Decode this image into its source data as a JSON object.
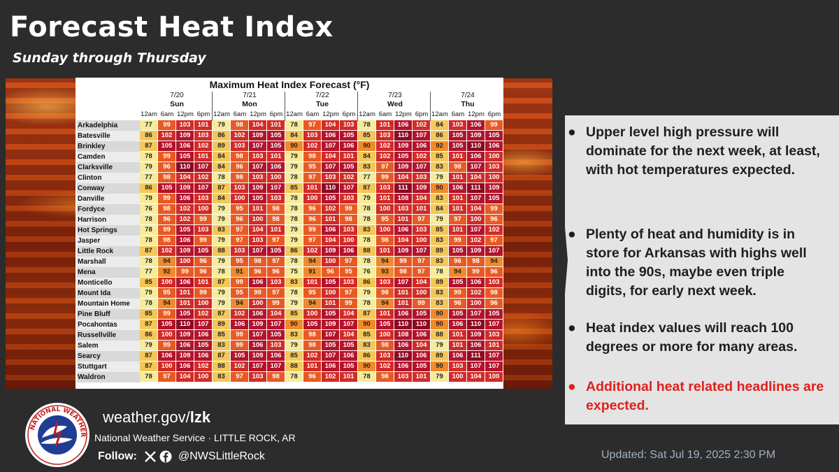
{
  "header": {
    "title": "Forecast Heat Index",
    "subtitle": "Sunday through Thursday"
  },
  "table": {
    "title": "Maximum Heat Index Forecast (°F)",
    "days": [
      {
        "date": "7/20",
        "dow": "Sun"
      },
      {
        "date": "7/21",
        "dow": "Mon"
      },
      {
        "date": "7/22",
        "dow": "Tue"
      },
      {
        "date": "7/23",
        "dow": "Wed"
      },
      {
        "date": "7/24",
        "dow": "Thu"
      }
    ],
    "hours": [
      "12am",
      "6am",
      "12pm",
      "6pm"
    ],
    "rows": [
      {
        "city": "Arkadelphia",
        "values": [
          77,
          99,
          103,
          101,
          79,
          98,
          104,
          101,
          78,
          97,
          104,
          103,
          78,
          101,
          106,
          102,
          84,
          103,
          106,
          99
        ]
      },
      {
        "city": "Batesville",
        "values": [
          86,
          102,
          109,
          103,
          86,
          102,
          109,
          105,
          84,
          103,
          106,
          105,
          85,
          103,
          110,
          107,
          86,
          105,
          109,
          105
        ]
      },
      {
        "city": "Brinkley",
        "values": [
          87,
          105,
          106,
          102,
          89,
          103,
          107,
          105,
          90,
          102,
          107,
          106,
          90,
          102,
          109,
          106,
          92,
          105,
          110,
          106
        ]
      },
      {
        "city": "Camden",
        "values": [
          78,
          99,
          105,
          101,
          84,
          98,
          103,
          101,
          79,
          98,
          104,
          101,
          84,
          102,
          105,
          102,
          85,
          101,
          106,
          100
        ]
      },
      {
        "city": "Clarksville",
        "values": [
          79,
          96,
          110,
          107,
          84,
          96,
          107,
          106,
          79,
          95,
          107,
          105,
          83,
          97,
          109,
          107,
          83,
          98,
          107,
          103
        ]
      },
      {
        "city": "Clinton",
        "values": [
          77,
          98,
          104,
          102,
          78,
          98,
          103,
          100,
          78,
          97,
          103,
          102,
          77,
          99,
          104,
          103,
          79,
          101,
          104,
          100
        ]
      },
      {
        "city": "Conway",
        "values": [
          86,
          105,
          109,
          107,
          87,
          103,
          109,
          107,
          85,
          101,
          110,
          107,
          87,
          103,
          111,
          109,
          90,
          106,
          111,
          109
        ]
      },
      {
        "city": "Danville",
        "values": [
          79,
          99,
          106,
          103,
          84,
          100,
          105,
          103,
          78,
          100,
          105,
          103,
          79,
          101,
          108,
          104,
          83,
          101,
          107,
          105
        ]
      },
      {
        "city": "Fordyce",
        "values": [
          76,
          98,
          102,
          100,
          79,
          95,
          101,
          98,
          78,
          96,
          102,
          99,
          78,
          100,
          103,
          101,
          84,
          101,
          104,
          99
        ]
      },
      {
        "city": "Harrison",
        "values": [
          78,
          96,
          102,
          99,
          79,
          96,
          100,
          98,
          78,
          96,
          101,
          98,
          78,
          95,
          101,
          97,
          79,
          97,
          100,
          96
        ]
      },
      {
        "city": "Hot Springs",
        "values": [
          78,
          99,
          105,
          103,
          83,
          97,
          104,
          101,
          79,
          99,
          106,
          103,
          83,
          100,
          106,
          103,
          85,
          101,
          107,
          102
        ]
      },
      {
        "city": "Jasper",
        "values": [
          78,
          98,
          106,
          99,
          79,
          97,
          103,
          97,
          79,
          97,
          104,
          100,
          78,
          98,
          104,
          100,
          83,
          99,
          102,
          97
        ]
      },
      {
        "city": "Little Rock",
        "values": [
          87,
          102,
          109,
          105,
          88,
          103,
          107,
          105,
          86,
          102,
          109,
          106,
          88,
          101,
          109,
          107,
          89,
          105,
          109,
          107
        ]
      },
      {
        "city": "Marshall",
        "values": [
          78,
          94,
          100,
          96,
          79,
          95,
          98,
          97,
          78,
          94,
          100,
          97,
          78,
          94,
          99,
          97,
          83,
          96,
          98,
          94
        ]
      },
      {
        "city": "Mena",
        "values": [
          77,
          92,
          99,
          96,
          78,
          91,
          96,
          96,
          75,
          91,
          96,
          95,
          76,
          93,
          98,
          97,
          78,
          94,
          99,
          96
        ]
      },
      {
        "city": "Monticello",
        "values": [
          85,
          100,
          106,
          101,
          87,
          99,
          106,
          103,
          83,
          101,
          105,
          103,
          86,
          103,
          107,
          104,
          89,
          105,
          106,
          103
        ]
      },
      {
        "city": "Mount Ida",
        "values": [
          79,
          95,
          101,
          99,
          79,
          95,
          99,
          97,
          78,
          95,
          100,
          97,
          79,
          98,
          101,
          100,
          83,
          99,
          102,
          98
        ]
      },
      {
        "city": "Mountain Home",
        "values": [
          78,
          94,
          101,
          100,
          79,
          94,
          100,
          99,
          79,
          94,
          101,
          99,
          78,
          94,
          101,
          99,
          83,
          96,
          100,
          96
        ]
      },
      {
        "city": "Pine Bluff",
        "values": [
          85,
          99,
          105,
          102,
          87,
          102,
          106,
          104,
          85,
          100,
          105,
          104,
          87,
          101,
          106,
          105,
          90,
          105,
          107,
          105
        ]
      },
      {
        "city": "Pocahontas",
        "values": [
          87,
          105,
          110,
          107,
          89,
          106,
          109,
          107,
          90,
          105,
          109,
          107,
          90,
          105,
          110,
          110,
          90,
          106,
          110,
          107
        ]
      },
      {
        "city": "Russellville",
        "values": [
          86,
          100,
          109,
          106,
          85,
          99,
          107,
          105,
          83,
          98,
          107,
          104,
          85,
          100,
          108,
          106,
          88,
          101,
          109,
          103
        ]
      },
      {
        "city": "Salem",
        "values": [
          79,
          99,
          106,
          105,
          83,
          99,
          106,
          103,
          79,
          98,
          105,
          105,
          83,
          98,
          106,
          104,
          79,
          101,
          106,
          101
        ]
      },
      {
        "city": "Searcy",
        "values": [
          87,
          106,
          109,
          106,
          87,
          105,
          109,
          106,
          85,
          102,
          107,
          106,
          86,
          103,
          110,
          106,
          89,
          106,
          111,
          107
        ]
      },
      {
        "city": "Stuttgart",
        "values": [
          87,
          100,
          106,
          102,
          88,
          102,
          107,
          107,
          88,
          101,
          106,
          105,
          90,
          102,
          106,
          105,
          90,
          103,
          107,
          107
        ]
      },
      {
        "city": "Waldron",
        "values": [
          78,
          97,
          104,
          100,
          83,
          97,
          103,
          98,
          78,
          96,
          102,
          101,
          78,
          98,
          103,
          101,
          79,
          100,
          104,
          100
        ]
      }
    ]
  },
  "bullets": [
    {
      "text": "Upper level high pressure will dominate for the next week, at least, with hot temperatures expected.",
      "color": "#1e1e1e"
    },
    {
      "text": "Plenty of heat and humidity is in store for Arkansas with highs well into the 90s, maybe even triple digits, for early next week.",
      "color": "#1e1e1e"
    },
    {
      "text": "Heat index values will reach 100 degrees or more for many areas.",
      "color": "#1e1e1e"
    },
    {
      "text": "Additional heat related headlines are expected.",
      "color": "#e0201c"
    }
  ],
  "footer": {
    "site_prefix": "weather.gov/",
    "site_suffix": "lzk",
    "office": "National Weather Service · LITTLE ROCK, AR",
    "follow_label": "Follow:",
    "handle": "@NWSLittleRock",
    "updated": "Updated: Sat Jul 19, 2025 2:30 PM",
    "logo_text": "NATIONAL WEATHER SERVICE"
  },
  "colors": {
    "lt80": "#f6eb9a",
    "80to89": "#f3c75a",
    "90to94": "#f08a2c",
    "95to99": "#e85a24",
    "100to104": "#d22b26",
    "105to109": "#b3132b",
    "110plus": "#8a0a22"
  }
}
